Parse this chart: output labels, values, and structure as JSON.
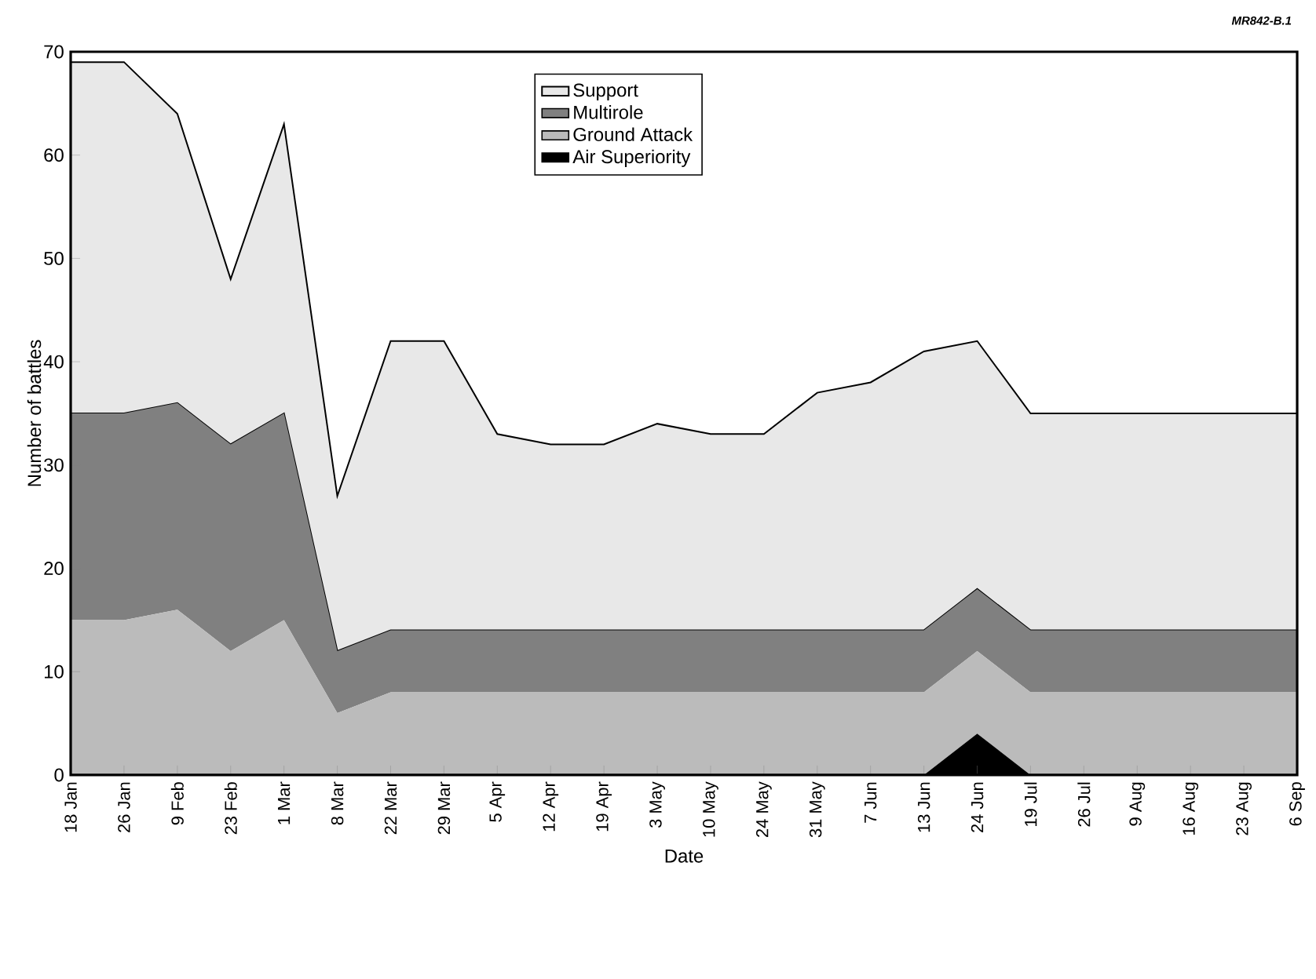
{
  "chart_data": {
    "type": "area",
    "stacked": true,
    "xlabel": "Date",
    "ylabel": "Number of battles",
    "annotations": [
      "MR842-B.1"
    ],
    "categories": [
      "18 Jan",
      "26 Jan",
      "9 Feb",
      "23 Feb",
      "1 Mar",
      "8 Mar",
      "22 Mar",
      "29 Mar",
      "5 Apr",
      "12 Apr",
      "19 Apr",
      "3 May",
      "10 May",
      "24 May",
      "31 May",
      "7 Jun",
      "13 Jun",
      "24 Jun",
      "19 Jul",
      "26 Jul",
      "9 Aug",
      "16 Aug",
      "23 Aug",
      "6 Sep"
    ],
    "series": [
      {
        "name": "Air Superiority",
        "color": "#000000",
        "values": [
          0,
          0,
          0,
          0,
          0,
          0,
          0,
          0,
          0,
          0,
          0,
          0,
          0,
          0,
          0,
          0,
          0,
          4,
          0,
          0,
          0,
          0,
          0,
          0
        ]
      },
      {
        "name": "Ground Attack",
        "color": "#bbbbbb",
        "values": [
          15,
          15,
          16,
          12,
          15,
          6,
          8,
          8,
          8,
          8,
          8,
          8,
          8,
          8,
          8,
          8,
          8,
          8,
          8,
          8,
          8,
          8,
          8,
          8
        ]
      },
      {
        "name": "Multirole",
        "color": "#808080",
        "values": [
          20,
          20,
          20,
          20,
          20,
          6,
          6,
          6,
          6,
          6,
          6,
          6,
          6,
          6,
          6,
          6,
          6,
          6,
          6,
          6,
          6,
          6,
          6,
          6
        ]
      },
      {
        "name": "Support",
        "color": "#e8e8e8",
        "values": [
          34,
          34,
          28,
          16,
          28,
          15,
          28,
          28,
          19,
          18,
          18,
          20,
          19,
          19,
          23,
          24,
          27,
          24,
          21,
          21,
          21,
          21,
          21,
          21
        ]
      }
    ],
    "ylim": [
      0,
      70
    ],
    "yticks": [
      0,
      10,
      20,
      30,
      40,
      50,
      60,
      70
    ],
    "legend": "top",
    "grid": false
  }
}
